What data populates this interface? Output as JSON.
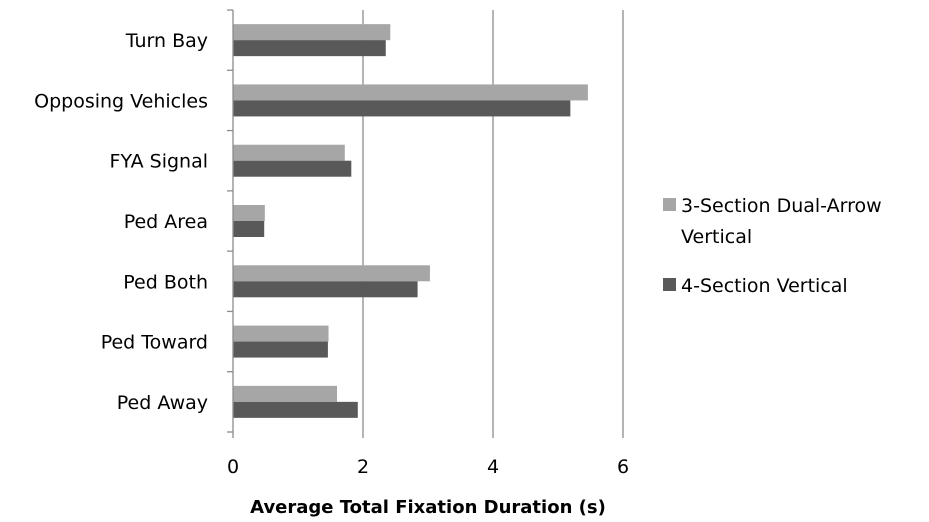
{
  "chart_data": {
    "type": "bar",
    "orientation": "horizontal",
    "title": "",
    "xlabel": "Average Total Fixation Duration (s)",
    "ylabel": "",
    "xlim": [
      0,
      6
    ],
    "xticks": [
      0,
      2,
      4,
      6
    ],
    "grid": "vertical major gridlines",
    "legend_position": "right",
    "categories": [
      "Turn Bay",
      "Opposing Vehicles",
      "FYA Signal",
      "Ped Area",
      "Ped Both",
      "Ped Toward",
      "Ped Away"
    ],
    "series": [
      {
        "name": "3-Section Dual-Arrow Vertical",
        "name_lines": [
          "3-Section Dual-Arrow",
          "Vertical"
        ],
        "color": "#a6a6a6",
        "values": [
          2.42,
          5.46,
          1.72,
          0.49,
          3.03,
          1.47,
          1.6
        ]
      },
      {
        "name": "4-Section Vertical",
        "name_lines": [
          "4-Section Vertical"
        ],
        "color": "#595959",
        "values": [
          2.35,
          5.19,
          1.82,
          0.48,
          2.84,
          1.46,
          1.92
        ]
      }
    ]
  }
}
